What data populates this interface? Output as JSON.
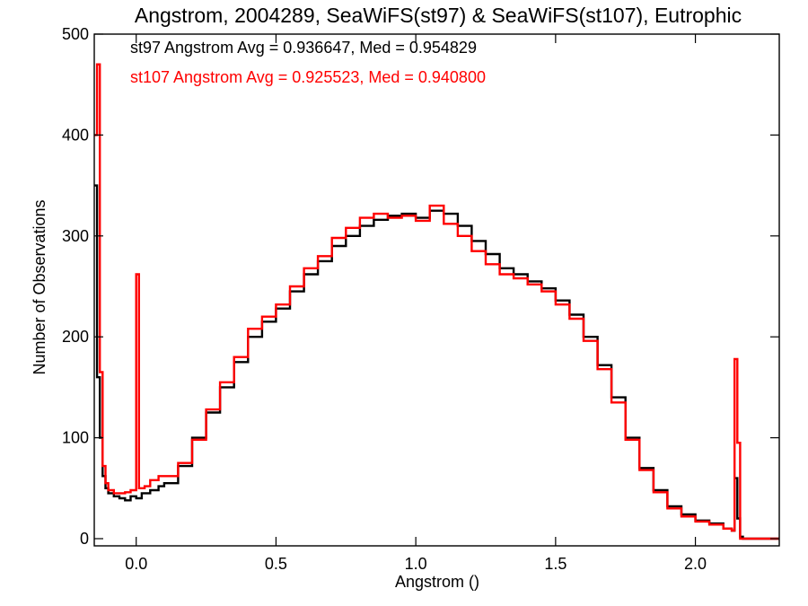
{
  "chart_data": {
    "type": "line",
    "drawstyle": "steps",
    "title": "Angstrom, 2004289, SeaWiFS(st97) & SeaWiFS(st107), Eutrophic",
    "xlabel": "Angstrom ()",
    "ylabel": "Number of Observations",
    "xlim": [
      -0.15,
      2.3
    ],
    "ylim": [
      0,
      500
    ],
    "x_ticks": [
      0.0,
      0.5,
      1.0,
      1.5,
      2.0
    ],
    "x_tick_labels": [
      "0.0",
      "0.5",
      "1.0",
      "1.5",
      "2.0"
    ],
    "y_ticks": [
      0,
      100,
      200,
      300,
      400,
      500
    ],
    "y_tick_labels": [
      "0",
      "100",
      "200",
      "300",
      "400",
      "500"
    ],
    "grid": false,
    "annotations": [
      "st97 Angstrom Avg = 0.936647, Med = 0.954829",
      "st107 Angstrom Avg = 0.925523, Med = 0.940800"
    ],
    "series": [
      {
        "color": "#000000",
        "points": [
          [
            -0.15,
            350
          ],
          [
            -0.14,
            160
          ],
          [
            -0.13,
            100
          ],
          [
            -0.12,
            62
          ],
          [
            -0.11,
            50
          ],
          [
            -0.1,
            45
          ],
          [
            -0.08,
            42
          ],
          [
            -0.06,
            40
          ],
          [
            -0.04,
            38
          ],
          [
            -0.02,
            42
          ],
          [
            0.0,
            40
          ],
          [
            0.02,
            45
          ],
          [
            0.05,
            48
          ],
          [
            0.08,
            52
          ],
          [
            0.1,
            55
          ],
          [
            0.15,
            72
          ],
          [
            0.2,
            100
          ],
          [
            0.25,
            125
          ],
          [
            0.3,
            150
          ],
          [
            0.35,
            175
          ],
          [
            0.4,
            200
          ],
          [
            0.45,
            215
          ],
          [
            0.5,
            228
          ],
          [
            0.55,
            245
          ],
          [
            0.6,
            262
          ],
          [
            0.65,
            275
          ],
          [
            0.7,
            290
          ],
          [
            0.75,
            300
          ],
          [
            0.8,
            310
          ],
          [
            0.85,
            316
          ],
          [
            0.9,
            320
          ],
          [
            0.95,
            322
          ],
          [
            1.0,
            318
          ],
          [
            1.05,
            325
          ],
          [
            1.1,
            322
          ],
          [
            1.15,
            310
          ],
          [
            1.2,
            295
          ],
          [
            1.25,
            282
          ],
          [
            1.3,
            268
          ],
          [
            1.35,
            262
          ],
          [
            1.4,
            255
          ],
          [
            1.45,
            248
          ],
          [
            1.5,
            236
          ],
          [
            1.55,
            222
          ],
          [
            1.6,
            200
          ],
          [
            1.65,
            172
          ],
          [
            1.7,
            140
          ],
          [
            1.75,
            100
          ],
          [
            1.8,
            70
          ],
          [
            1.85,
            48
          ],
          [
            1.9,
            32
          ],
          [
            1.95,
            24
          ],
          [
            2.0,
            18
          ],
          [
            2.05,
            15
          ],
          [
            2.1,
            10
          ],
          [
            2.13,
            8
          ],
          [
            2.14,
            60
          ],
          [
            2.15,
            20
          ],
          [
            2.16,
            2
          ],
          [
            2.17,
            0
          ],
          [
            2.3,
            0
          ]
        ]
      },
      {
        "color": "#ff0000",
        "points": [
          [
            -0.15,
            400
          ],
          [
            -0.14,
            470
          ],
          [
            -0.13,
            165
          ],
          [
            -0.12,
            72
          ],
          [
            -0.11,
            55
          ],
          [
            -0.1,
            48
          ],
          [
            -0.08,
            45
          ],
          [
            -0.06,
            45
          ],
          [
            -0.04,
            46
          ],
          [
            -0.02,
            48
          ],
          [
            0.0,
            262
          ],
          [
            0.01,
            50
          ],
          [
            0.03,
            52
          ],
          [
            0.05,
            58
          ],
          [
            0.08,
            62
          ],
          [
            0.1,
            62
          ],
          [
            0.15,
            75
          ],
          [
            0.2,
            98
          ],
          [
            0.25,
            128
          ],
          [
            0.3,
            155
          ],
          [
            0.35,
            180
          ],
          [
            0.4,
            208
          ],
          [
            0.45,
            220
          ],
          [
            0.5,
            232
          ],
          [
            0.55,
            250
          ],
          [
            0.6,
            268
          ],
          [
            0.65,
            280
          ],
          [
            0.7,
            298
          ],
          [
            0.75,
            308
          ],
          [
            0.8,
            318
          ],
          [
            0.85,
            322
          ],
          [
            0.9,
            318
          ],
          [
            0.95,
            320
          ],
          [
            1.0,
            315
          ],
          [
            1.05,
            330
          ],
          [
            1.1,
            312
          ],
          [
            1.15,
            300
          ],
          [
            1.2,
            285
          ],
          [
            1.25,
            272
          ],
          [
            1.3,
            262
          ],
          [
            1.35,
            258
          ],
          [
            1.4,
            252
          ],
          [
            1.45,
            245
          ],
          [
            1.5,
            232
          ],
          [
            1.55,
            218
          ],
          [
            1.6,
            196
          ],
          [
            1.65,
            168
          ],
          [
            1.7,
            135
          ],
          [
            1.75,
            98
          ],
          [
            1.8,
            68
          ],
          [
            1.85,
            46
          ],
          [
            1.9,
            30
          ],
          [
            1.95,
            22
          ],
          [
            2.0,
            17
          ],
          [
            2.05,
            14
          ],
          [
            2.1,
            10
          ],
          [
            2.13,
            8
          ],
          [
            2.14,
            178
          ],
          [
            2.15,
            95
          ],
          [
            2.16,
            0
          ],
          [
            2.3,
            0
          ]
        ]
      }
    ]
  }
}
